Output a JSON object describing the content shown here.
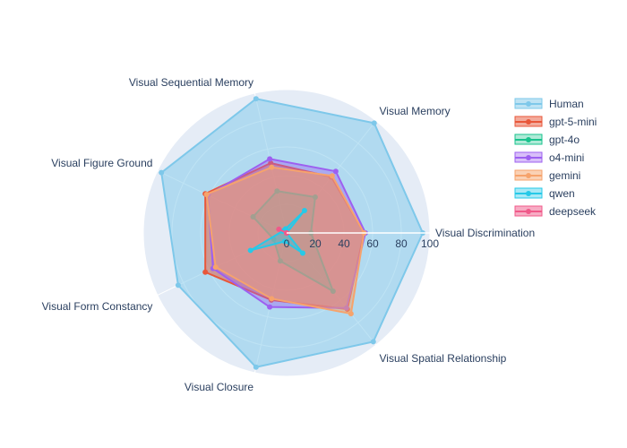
{
  "chart_data": {
    "type": "radar",
    "title": "",
    "categories": [
      "Visual Discrimination",
      "Visual Memory",
      "Visual Sequential Memory",
      "Visual Figure Ground",
      "Visual Form Constancy",
      "Visual Closure",
      "Visual Spatial Relationship"
    ],
    "radial_range": [
      0,
      100
    ],
    "radial_ticks": [
      "0",
      "20",
      "40",
      "60",
      "80",
      "100"
    ],
    "radial_tick_values": [
      0,
      20,
      40,
      60,
      80,
      100
    ],
    "legend_position": "right",
    "series": [
      {
        "name": "Human",
        "color": "#7ec8ea",
        "fill": "rgba(126,200,234,0.5)",
        "values": [
          95,
          98,
          96,
          97,
          84,
          96,
          97
        ]
      },
      {
        "name": "gpt-5-mini",
        "color": "#e8573a",
        "fill": "rgba(232,87,58,0.5)",
        "values": [
          54,
          50,
          50,
          63,
          63,
          48,
          68
        ]
      },
      {
        "name": "gpt-4o",
        "color": "#19c38d",
        "fill": "rgba(25,195,141,0.35)",
        "values": [
          17,
          32,
          30,
          26,
          10,
          20,
          52
        ]
      },
      {
        "name": "o4-mini",
        "color": "#9d60f0",
        "fill": "rgba(157,96,240,0.4)",
        "values": [
          55,
          55,
          53,
          61,
          57,
          53,
          67
        ]
      },
      {
        "name": "gemini",
        "color": "#f6a36c",
        "fill": "rgba(246,163,108,0.5)",
        "values": [
          54,
          51,
          47,
          62,
          55,
          47,
          72
        ]
      },
      {
        "name": "qwen",
        "color": "#26c9e8",
        "fill": "rgba(38,201,232,0.4)",
        "values": [
          0,
          20,
          3,
          3,
          28,
          6,
          18
        ]
      },
      {
        "name": "deepseek",
        "color": "#f05a8a",
        "fill": "rgba(240,90,138,0.5)",
        "values": [
          0,
          0,
          0,
          6,
          0,
          0,
          0
        ]
      }
    ]
  }
}
